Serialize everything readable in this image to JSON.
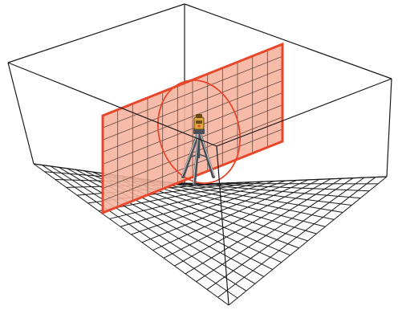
{
  "diagram": {
    "subject": "laser-level-projecting-vertical-plane-in-room",
    "colors": {
      "background": "#ffffff",
      "box_line": "#1a1a1a",
      "floor_grid": "#1a1a1a",
      "laser_line": "#e8472c",
      "laser_plane_fill": "#f5b4a0",
      "plane_grid": "#6a4a42",
      "tripod": "#8a8f96",
      "tripod_dark": "#4b4f55",
      "level_head": "#d9a640",
      "level_head_dark": "#6b4a14"
    },
    "floor_grid": {
      "rows": 18,
      "cols": 18
    },
    "plane_grid": {
      "rows": 8,
      "cols": 12
    },
    "icons": [
      "room-box-outline",
      "floor-grid",
      "laser-plane",
      "laser-ellipse",
      "tripod-icon",
      "laser-level-head-icon"
    ]
  }
}
